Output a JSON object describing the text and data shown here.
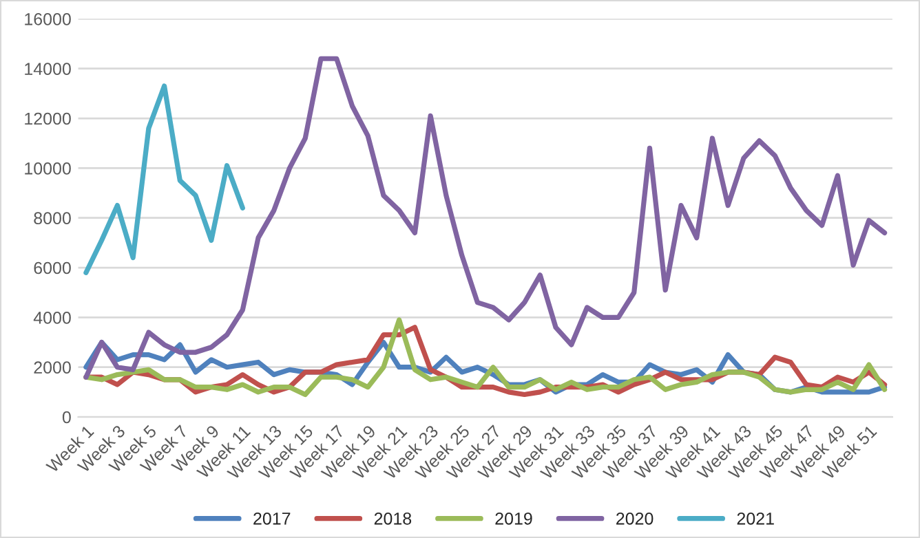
{
  "chart_data": {
    "type": "line",
    "categories": [
      "Week 1",
      null,
      "Week 3",
      null,
      "Week 5",
      null,
      "Week 7",
      null,
      "Week 9",
      null,
      "Week 11",
      null,
      "Week 13",
      null,
      "Week 15",
      null,
      "Week 17",
      null,
      "Week 19",
      null,
      "Week 21",
      null,
      "Week 23",
      null,
      "Week 25",
      null,
      "Week 27",
      null,
      "Week 29",
      null,
      "Week 31",
      null,
      "Week 33",
      null,
      "Week 35",
      null,
      "Week 37",
      null,
      "Week 39",
      null,
      "Week 41",
      null,
      "Week 43",
      null,
      "Week 45",
      null,
      "Week 47",
      null,
      "Week 49",
      null,
      "Week 51",
      null
    ],
    "series": [
      {
        "name": "2017",
        "color": "#4f81bd",
        "values": [
          2000,
          3000,
          2300,
          2500,
          2500,
          2300,
          2900,
          1800,
          2300,
          2000,
          2100,
          2200,
          1700,
          1900,
          1800,
          1800,
          1700,
          1300,
          2200,
          3000,
          2000,
          2000,
          1800,
          2400,
          1800,
          2000,
          1700,
          1300,
          1300,
          1500,
          1000,
          1300,
          1300,
          1700,
          1400,
          1400,
          2100,
          1800,
          1700,
          1900,
          1400,
          2500,
          1800,
          1700,
          1100,
          1000,
          1200,
          1000,
          1000,
          1000,
          1000,
          1200
        ]
      },
      {
        "name": "2018",
        "color": "#c0504d",
        "values": [
          1600,
          1600,
          1300,
          1800,
          1700,
          1500,
          1500,
          1000,
          1200,
          1300,
          1700,
          1300,
          1000,
          1200,
          1800,
          1800,
          2100,
          2200,
          2300,
          3300,
          3300,
          3600,
          1900,
          1600,
          1200,
          1200,
          1200,
          1000,
          900,
          1000,
          1200,
          1200,
          1200,
          1300,
          1000,
          1300,
          1500,
          1800,
          1500,
          1500,
          1500,
          1800,
          1800,
          1700,
          2400,
          2200,
          1300,
          1200,
          1600,
          1400,
          1800,
          1300
        ]
      },
      {
        "name": "2019",
        "color": "#9bbb59",
        "values": [
          1600,
          1500,
          1700,
          1800,
          1900,
          1500,
          1500,
          1200,
          1200,
          1100,
          1300,
          1000,
          1200,
          1200,
          900,
          1600,
          1600,
          1500,
          1200,
          2000,
          3900,
          1900,
          1500,
          1600,
          1400,
          1200,
          2000,
          1200,
          1200,
          1500,
          1100,
          1400,
          1100,
          1200,
          1200,
          1500,
          1600,
          1100,
          1300,
          1400,
          1700,
          1800,
          1800,
          1600,
          1100,
          1000,
          1100,
          1100,
          1400,
          1100,
          2100,
          1100
        ]
      },
      {
        "name": "2020",
        "color": "#8064a2",
        "values": [
          1600,
          3000,
          2000,
          1900,
          3400,
          2900,
          2600,
          2600,
          2800,
          3300,
          4300,
          7200,
          8300,
          10000,
          11200,
          14400,
          14400,
          12500,
          11300,
          8900,
          8300,
          7400,
          12100,
          8900,
          6500,
          4600,
          4400,
          3900,
          4600,
          5700,
          3600,
          2900,
          4400,
          4000,
          4000,
          5000,
          10800,
          5100,
          8500,
          7200,
          11200,
          8500,
          10400,
          11100,
          10500,
          9200,
          8300,
          7700,
          9700,
          6100,
          7900,
          7400
        ]
      },
      {
        "name": "2021",
        "color": "#4bacc6",
        "values": [
          5800,
          7100,
          8500,
          6400,
          11600,
          13300,
          9500,
          8900,
          7100,
          10100,
          8400,
          null,
          null,
          null,
          null,
          null,
          null,
          null,
          null,
          null,
          null,
          null,
          null,
          null,
          null,
          null,
          null,
          null,
          null,
          null,
          null,
          null,
          null,
          null,
          null,
          null,
          null,
          null,
          null,
          null,
          null,
          null,
          null,
          null,
          null,
          null,
          null,
          null,
          null,
          null,
          null,
          null
        ]
      }
    ],
    "ylim": [
      0,
      16000
    ],
    "yticks": [
      0,
      2000,
      4000,
      6000,
      8000,
      10000,
      12000,
      14000,
      16000
    ],
    "grid": "y",
    "legend": "bottom",
    "marker": "none",
    "line_style": "solid"
  }
}
